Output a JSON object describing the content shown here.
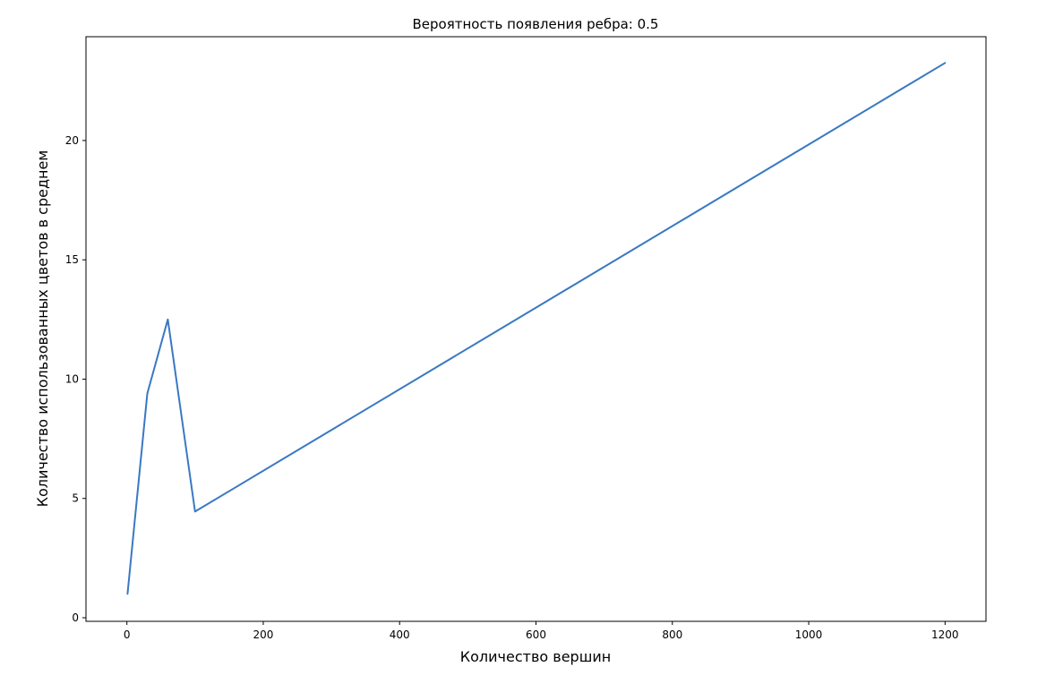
{
  "chart_data": {
    "type": "line",
    "title": "Вероятность появления ребра: 0.5",
    "xlabel": "Количество вершин",
    "ylabel": "Количество использованных цветов в среднем",
    "xlim": [
      -60,
      1260
    ],
    "ylim": [
      -0.15,
      24.35
    ],
    "x_ticks": [
      0,
      200,
      400,
      600,
      800,
      1000,
      1200
    ],
    "y_ticks": [
      0,
      5,
      10,
      15,
      20
    ],
    "grid": false,
    "legend": "none",
    "series": [
      {
        "color": "#3a78c3",
        "x": [
          1,
          30,
          60,
          100,
          1200
        ],
        "y": [
          1.0,
          9.4,
          12.5,
          4.45,
          23.25
        ]
      }
    ]
  }
}
